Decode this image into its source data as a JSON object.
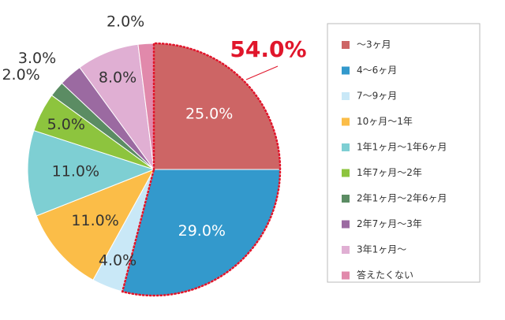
{
  "chart_data": {
    "type": "pie",
    "categories": [
      "～3ヶ月",
      "4～6ヶ月",
      "7～9ヶ月",
      "10ヶ月～1年",
      "1年1ヶ月～1年6ヶ月",
      "1年7ヶ月～2年",
      "2年1ヶ月～2年6ヶ月",
      "2年7ヶ月～3年",
      "3年1ヶ月～",
      "答えたくない"
    ],
    "values": [
      25,
      29,
      4,
      11,
      11,
      5,
      2,
      3,
      8,
      2
    ],
    "value_labels": [
      "25.0%",
      "29.0%",
      "4.0%",
      "11.0%",
      "11.0%",
      "5.0%",
      "2.0%",
      "3.0%",
      "8.0%",
      "2.0%"
    ],
    "colors": [
      "#cd6565",
      "#3399cc",
      "#c9e8f7",
      "#fbbd48",
      "#7ecfd3",
      "#8dc43e",
      "#5b8c63",
      "#9b6aa1",
      "#e0afd3",
      "#e189ab"
    ],
    "annotation": "54.0%",
    "legend": "right"
  }
}
